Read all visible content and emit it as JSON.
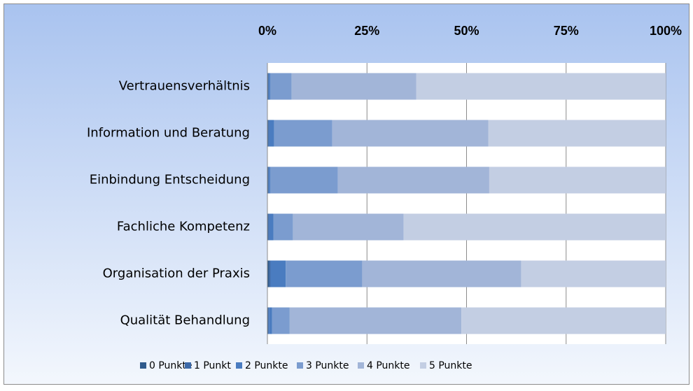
{
  "chart_data": {
    "type": "stacked_bar_horizontal",
    "categories": [
      "Vertrauensverhältnis",
      "Information und Beratung",
      "Einbindung Entscheidung",
      "Fachliche Kompetenz",
      "Organisation der Praxis",
      "Qualität Behandlung"
    ],
    "series": [
      {
        "name": "0 Punkte",
        "color": "#2f5a8c",
        "values": [
          0.2,
          0.2,
          0.2,
          0.2,
          0.5,
          0.2
        ]
      },
      {
        "name": "1 Punkt",
        "color": "#3c69a8",
        "values": [
          0.2,
          0.3,
          0.2,
          0.3,
          0.3,
          0.2
        ]
      },
      {
        "name": "2 Punkte",
        "color": "#4a7cc0",
        "values": [
          0.3,
          1.2,
          0.3,
          1.0,
          3.8,
          0.8
        ]
      },
      {
        "name": "3 Punkte",
        "color": "#7b9ccf",
        "values": [
          5.4,
          14.6,
          17.0,
          4.9,
          19.2,
          4.4
        ]
      },
      {
        "name": "4 Punkte",
        "color": "#a2b5d8",
        "values": [
          31.3,
          39.2,
          38.0,
          27.8,
          39.9,
          43.1
        ]
      },
      {
        "name": "5 Punkte",
        "color": "#c3cee3",
        "values": [
          62.6,
          44.5,
          44.3,
          65.8,
          36.3,
          51.3
        ]
      }
    ],
    "xlim": [
      0,
      100
    ],
    "xticks": [
      {
        "value": 0,
        "label": "0%"
      },
      {
        "value": 25,
        "label": "25%"
      },
      {
        "value": 50,
        "label": "50%"
      },
      {
        "value": 75,
        "label": "75%"
      },
      {
        "value": 100,
        "label": "100%"
      }
    ],
    "grid": true,
    "legend": "bottom"
  }
}
